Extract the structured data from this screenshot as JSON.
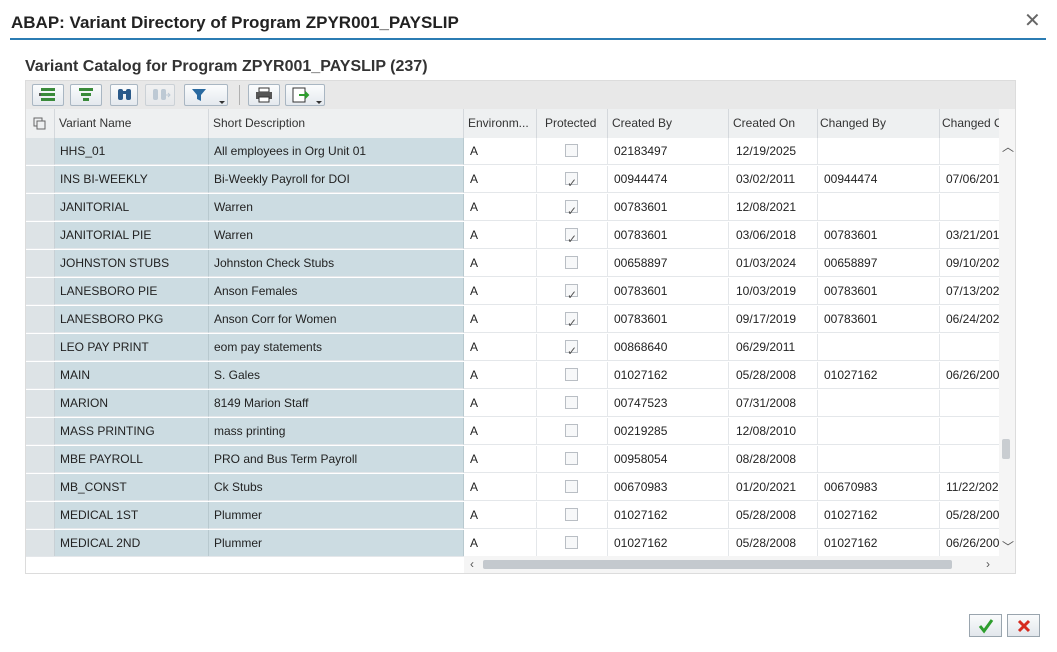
{
  "window": {
    "title": "ABAP: Variant Directory of Program ZPYR001_PAYSLIP"
  },
  "subtitle": "Variant Catalog for Program ZPYR001_PAYSLIP (237)",
  "colors": {
    "accent": "#2b7cb3",
    "key_column_bg": "#ccdce2",
    "ok_green": "#2e9e2e",
    "cancel_red": "#d62b1f"
  },
  "toolbar": {
    "buttons": [
      {
        "name": "details-icon"
      },
      {
        "name": "select-all-icon"
      },
      {
        "name": "find-icon"
      },
      {
        "name": "find-next-icon"
      },
      {
        "name": "filter-icon"
      },
      {
        "name": "print-icon"
      },
      {
        "name": "export-icon"
      }
    ]
  },
  "table": {
    "headers": {
      "name": "Variant Name",
      "description": "Short Description",
      "environment": "Environm...",
      "protected": "Protected",
      "created_by": "Created By",
      "created_on": "Created On",
      "changed_by": "Changed By",
      "changed_on": "Changed O"
    },
    "rows": [
      {
        "name": "HHS_01",
        "description": "All employees in Org Unit 01",
        "environment": "A",
        "protected": false,
        "created_by": "02183497",
        "created_on": "12/19/2025",
        "changed_by": "",
        "changed_on": ""
      },
      {
        "name": "INS BI-WEEKLY",
        "description": "Bi-Weekly Payroll for DOI",
        "environment": "A",
        "protected": true,
        "created_by": "00944474",
        "created_on": "03/02/2011",
        "changed_by": "00944474",
        "changed_on": "07/06/201"
      },
      {
        "name": "JANITORIAL",
        "description": "Warren",
        "environment": "A",
        "protected": true,
        "created_by": "00783601",
        "created_on": "12/08/2021",
        "changed_by": "",
        "changed_on": ""
      },
      {
        "name": "JANITORIAL PIE",
        "description": "Warren",
        "environment": "A",
        "protected": true,
        "created_by": "00783601",
        "created_on": "03/06/2018",
        "changed_by": "00783601",
        "changed_on": "03/21/201"
      },
      {
        "name": "JOHNSTON STUBS",
        "description": "Johnston Check Stubs",
        "environment": "A",
        "protected": false,
        "created_by": "00658897",
        "created_on": "01/03/2024",
        "changed_by": "00658897",
        "changed_on": "09/10/202"
      },
      {
        "name": "LANESBORO PIE",
        "description": "Anson  Females",
        "environment": "A",
        "protected": true,
        "created_by": "00783601",
        "created_on": "10/03/2019",
        "changed_by": "00783601",
        "changed_on": "07/13/202"
      },
      {
        "name": "LANESBORO PKG",
        "description": "Anson Corr for Women",
        "environment": "A",
        "protected": true,
        "created_by": "00783601",
        "created_on": "09/17/2019",
        "changed_by": "00783601",
        "changed_on": "06/24/202"
      },
      {
        "name": "LEO PAY PRINT",
        "description": "eom pay statements",
        "environment": "A",
        "protected": true,
        "created_by": "00868640",
        "created_on": "06/29/2011",
        "changed_by": "",
        "changed_on": ""
      },
      {
        "name": "MAIN",
        "description": "S. Gales",
        "environment": "A",
        "protected": false,
        "created_by": "01027162",
        "created_on": "05/28/2008",
        "changed_by": "01027162",
        "changed_on": "06/26/200"
      },
      {
        "name": "MARION",
        "description": "8149 Marion Staff",
        "environment": "A",
        "protected": false,
        "created_by": "00747523",
        "created_on": "07/31/2008",
        "changed_by": "",
        "changed_on": ""
      },
      {
        "name": "MASS PRINTING",
        "description": "mass printing",
        "environment": "A",
        "protected": false,
        "created_by": "00219285",
        "created_on": "12/08/2010",
        "changed_by": "",
        "changed_on": ""
      },
      {
        "name": "MBE PAYROLL",
        "description": "PRO and Bus Term Payroll",
        "environment": "A",
        "protected": false,
        "created_by": "00958054",
        "created_on": "08/28/2008",
        "changed_by": "",
        "changed_on": ""
      },
      {
        "name": "MB_CONST",
        "description": "Ck Stubs",
        "environment": "A",
        "protected": false,
        "created_by": "00670983",
        "created_on": "01/20/2021",
        "changed_by": "00670983",
        "changed_on": "11/22/202"
      },
      {
        "name": "MEDICAL 1ST",
        "description": "Plummer",
        "environment": "A",
        "protected": false,
        "created_by": "01027162",
        "created_on": "05/28/2008",
        "changed_by": "01027162",
        "changed_on": "05/28/200"
      },
      {
        "name": "MEDICAL 2ND",
        "description": "Plummer",
        "environment": "A",
        "protected": false,
        "created_by": "01027162",
        "created_on": "05/28/2008",
        "changed_by": "01027162",
        "changed_on": "06/26/200"
      }
    ]
  },
  "footer": {
    "ok_icon": "checkmark-icon",
    "cancel_icon": "cancel-x-icon"
  }
}
